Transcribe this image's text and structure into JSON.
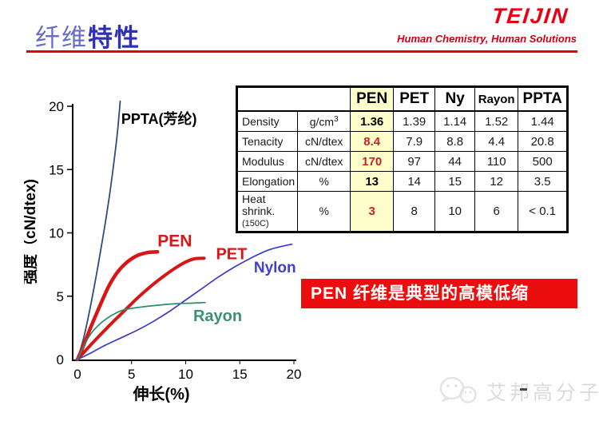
{
  "header": {
    "title_light": "纤维",
    "title_bold": "特性",
    "brand": "TEIJIN",
    "tagline": "Human Chemistry, Human Solutions",
    "rule_color": "#E8000D",
    "brand_color": "#E60012",
    "title_color": "#3030B4"
  },
  "chart_data": {
    "type": "line",
    "title": "",
    "xlabel": "伸长(%)",
    "ylabel": "强度（cN/dtex)",
    "xlim": [
      0,
      20
    ],
    "ylim": [
      0,
      21
    ],
    "xticks": [
      0,
      5,
      10,
      15,
      20
    ],
    "yticks": [
      0,
      5,
      10,
      15,
      20
    ],
    "grid": false,
    "legend": "inline-labels",
    "series": [
      {
        "name": "PPTA",
        "label": "PPTA(芳纶)",
        "color": "#2F4C7E",
        "label_color": "#000000",
        "label_size": 18,
        "width": 1.8,
        "label_pos": [
          4.05,
          19.0
        ],
        "points": [
          [
            0,
            0
          ],
          [
            0.6,
            1.8
          ],
          [
            1.2,
            4.2
          ],
          [
            1.9,
            7.4
          ],
          [
            2.5,
            10.4
          ],
          [
            3.0,
            13.2
          ],
          [
            3.4,
            15.8
          ],
          [
            3.7,
            18.0
          ],
          [
            3.95,
            20.4
          ]
        ]
      },
      {
        "name": "PEN",
        "label": "PEN",
        "color": "#D81616",
        "label_color": "#D81616",
        "label_size": 21,
        "width": 4.5,
        "label_pos": [
          7.4,
          9.3
        ],
        "points": [
          [
            0,
            0
          ],
          [
            0.6,
            1.2
          ],
          [
            1.3,
            2.7
          ],
          [
            2.1,
            4.3
          ],
          [
            2.9,
            5.8
          ],
          [
            3.7,
            6.9
          ],
          [
            4.6,
            7.7
          ],
          [
            5.5,
            8.2
          ],
          [
            6.5,
            8.45
          ],
          [
            7.4,
            8.5
          ]
        ]
      },
      {
        "name": "PET",
        "label": "PET",
        "color": "#D81616",
        "label_color": "#D81616",
        "label_size": 20,
        "width": 4,
        "label_pos": [
          12.8,
          8.3
        ],
        "points": [
          [
            0,
            0
          ],
          [
            0.9,
            0.85
          ],
          [
            2.0,
            1.85
          ],
          [
            3.2,
            2.9
          ],
          [
            4.4,
            3.9
          ],
          [
            5.6,
            4.9
          ],
          [
            6.8,
            5.8
          ],
          [
            8.0,
            6.6
          ],
          [
            9.0,
            7.2
          ],
          [
            10.0,
            7.7
          ],
          [
            10.8,
            7.95
          ],
          [
            11.7,
            8.0
          ]
        ]
      },
      {
        "name": "Nylon",
        "label": "Nylon",
        "color": "#3C3CC8",
        "label_color": "#4040C8",
        "label_size": 19,
        "width": 1.7,
        "label_pos": [
          16.3,
          7.25
        ],
        "points": [
          [
            0,
            0
          ],
          [
            1.2,
            0.5
          ],
          [
            2.5,
            1.1
          ],
          [
            4.0,
            1.7
          ],
          [
            5.5,
            2.3
          ],
          [
            7.0,
            3.0
          ],
          [
            8.5,
            3.8
          ],
          [
            10.0,
            4.7
          ],
          [
            11.5,
            5.6
          ],
          [
            13.0,
            6.5
          ],
          [
            14.5,
            7.3
          ],
          [
            16.0,
            8.0
          ],
          [
            17.5,
            8.6
          ],
          [
            18.7,
            8.9
          ],
          [
            19.8,
            9.1
          ]
        ]
      },
      {
        "name": "Rayon",
        "label": "Rayon",
        "color": "#2E8C6E",
        "label_color": "#3E9070",
        "label_size": 20,
        "width": 1.7,
        "label_pos": [
          10.7,
          3.4
        ],
        "points": [
          [
            0,
            0
          ],
          [
            0.6,
            1.1
          ],
          [
            1.3,
            2.1
          ],
          [
            2.2,
            2.9
          ],
          [
            3.2,
            3.5
          ],
          [
            4.2,
            3.9
          ],
          [
            5.5,
            4.1
          ],
          [
            7.0,
            4.25
          ],
          [
            9.0,
            4.4
          ],
          [
            10.5,
            4.45
          ],
          [
            11.8,
            4.5
          ]
        ]
      }
    ]
  },
  "table": {
    "highlight_column": "PEN",
    "highlight_color": "#FFFFCC",
    "columns": [
      "PEN",
      "PET",
      "Ny",
      "Rayon",
      "PPTA"
    ],
    "rows": [
      {
        "property": "Density",
        "property_note": "",
        "unit": "g/cm",
        "unit_sup": "3",
        "values": [
          "1.36",
          "1.39",
          "1.14",
          "1.52",
          "1.44"
        ],
        "highlight_value_color": "#000000"
      },
      {
        "property": "Tenacity",
        "property_note": "",
        "unit": "cN/dtex",
        "unit_sup": "",
        "values": [
          "8.4",
          "7.9",
          "8.8",
          "4.4",
          "20.8"
        ],
        "highlight_value_color": "#CC2222"
      },
      {
        "property": "Modulus",
        "property_note": "",
        "unit": "cN/dtex",
        "unit_sup": "",
        "values": [
          "170",
          "97",
          "44",
          "110",
          "500"
        ],
        "highlight_value_color": "#CC2222"
      },
      {
        "property": "Elongation",
        "property_note": "",
        "unit": "%",
        "unit_sup": "",
        "values": [
          "13",
          "14",
          "15",
          "12",
          "3.5"
        ],
        "highlight_value_color": "#000000"
      },
      {
        "property": "Heat shrink.",
        "property_note": "(150C)",
        "unit": "%",
        "unit_sup": "",
        "values": [
          "3",
          "8",
          "10",
          "6",
          "< 0.1"
        ],
        "highlight_value_color": "#CC2222"
      }
    ]
  },
  "banner": {
    "text": "PEN 纤维是典型的高模低缩",
    "bg": "#EC0E0E",
    "fg": "#FFFFFF"
  },
  "watermark": {
    "text": "艾邦高分子"
  }
}
